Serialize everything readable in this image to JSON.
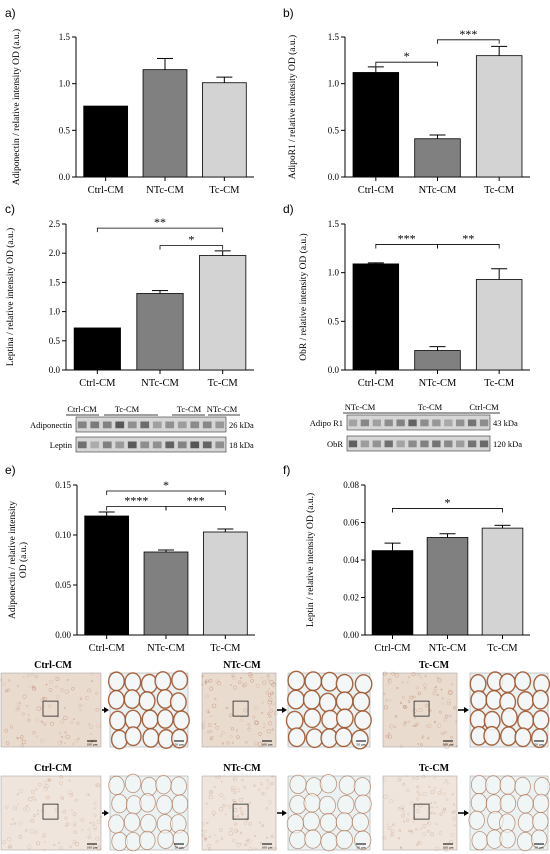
{
  "colors": {
    "Ctrl-CM": "#000000",
    "NTc-CM": "#808080",
    "Tc-CM": "#d3d3d3",
    "stain_brown": "#a0562e",
    "stain_pale": "#ecd8c8",
    "lumen": "#eaf1f2"
  },
  "chart_data": [
    {
      "id": "a",
      "letter": "a)",
      "type": "bar",
      "categories": [
        "Ctrl-CM",
        "NTc-CM",
        "Tc-CM"
      ],
      "values": [
        0.76,
        1.15,
        1.01
      ],
      "errors": [
        0.0,
        0.12,
        0.06
      ],
      "ylabel": "Adiponectin / relative intensity OD (a.u.)",
      "ylim": [
        0,
        1.5
      ],
      "yticks": [
        0.0,
        0.5,
        1.0,
        1.5
      ],
      "tick_labels": [
        "0.0",
        "0.5",
        "1.0",
        "1.5"
      ],
      "significance": []
    },
    {
      "id": "b",
      "letter": "b)",
      "type": "bar",
      "categories": [
        "Ctrl-CM",
        "NTc-CM",
        "Tc-CM"
      ],
      "values": [
        1.12,
        0.41,
        1.3
      ],
      "errors": [
        0.06,
        0.04,
        0.1
      ],
      "ylabel": "AdipoR1 / relative intensity OD (a.u.)",
      "ylim": [
        0,
        1.5
      ],
      "yticks": [
        0.0,
        0.5,
        1.0,
        1.5
      ],
      "tick_labels": [
        "0.0",
        "0.5",
        "1.0",
        "1.5"
      ],
      "significance": [
        {
          "from": 0,
          "to": 1,
          "label": "*",
          "y": 1.23
        },
        {
          "from": 1,
          "to": 2,
          "label": "***",
          "y": 1.47
        }
      ]
    },
    {
      "id": "c",
      "letter": "c)",
      "type": "bar",
      "categories": [
        "Ctrl-CM",
        "NTc-CM",
        "Tc-CM"
      ],
      "values": [
        0.72,
        1.31,
        1.96
      ],
      "errors": [
        0.0,
        0.05,
        0.08
      ],
      "ylabel": "Leptina / relative intensity OD (a.u.)",
      "ylim": [
        0,
        2.5
      ],
      "yticks": [
        0.0,
        0.5,
        1.0,
        1.5,
        2.0,
        2.5
      ],
      "tick_labels": [
        "0.0",
        "0.5",
        "1.0",
        "1.5",
        "2.0",
        "2.5"
      ],
      "significance": [
        {
          "from": 0,
          "to": 2,
          "label": "**",
          "y": 2.43
        },
        {
          "from": 1,
          "to": 2,
          "label": "*",
          "y": 2.13
        }
      ]
    },
    {
      "id": "d",
      "letter": "d)",
      "type": "bar",
      "categories": [
        "Ctrl-CM",
        "NTc-CM",
        "Tc-CM"
      ],
      "values": [
        1.09,
        0.2,
        0.93
      ],
      "errors": [
        0.01,
        0.04,
        0.11
      ],
      "ylabel": "ObR / relative intensity OD (a.u.)",
      "ylim": [
        0,
        1.5
      ],
      "yticks": [
        0.0,
        0.5,
        1.0,
        1.5
      ],
      "tick_labels": [
        "0.0",
        "0.5",
        "1.0",
        "1.5"
      ],
      "significance": [
        {
          "from": 0,
          "to": 1,
          "label": "***",
          "y": 1.29
        },
        {
          "from": 1,
          "to": 2,
          "label": "**",
          "y": 1.29
        }
      ]
    },
    {
      "id": "e",
      "letter": "e)",
      "type": "bar",
      "categories": [
        "Ctrl-CM",
        "NTc-CM",
        "Tc-CM"
      ],
      "values": [
        0.119,
        0.083,
        0.103
      ],
      "errors": [
        0.004,
        0.002,
        0.003
      ],
      "ylabel": "Adiponectin / relative intensity OD (a.u.)",
      "ylabel_lines": [
        "Adiponectin / relative intensity",
        "OD (a.u.)"
      ],
      "ylim": [
        0,
        0.15
      ],
      "yticks": [
        0.0,
        0.05,
        0.1,
        0.15
      ],
      "tick_labels": [
        "0.00",
        "0.05",
        "0.10",
        "0.15"
      ],
      "significance": [
        {
          "from": 0,
          "to": 2,
          "label": "*",
          "y": 0.144
        },
        {
          "from": 0,
          "to": 1,
          "label": "****",
          "y": 0.1285
        },
        {
          "from": 1,
          "to": 2,
          "label": "***",
          "y": 0.1285
        }
      ]
    },
    {
      "id": "f",
      "letter": "f)",
      "type": "bar",
      "categories": [
        "Ctrl-CM",
        "NTc-CM",
        "Tc-CM"
      ],
      "values": [
        0.045,
        0.052,
        0.057
      ],
      "errors": [
        0.004,
        0.002,
        0.0015
      ],
      "ylabel": "Leptin / relative intensity OD (a.u.)",
      "ylim": [
        0,
        0.08
      ],
      "yticks": [
        0.0,
        0.02,
        0.04,
        0.06,
        0.08
      ],
      "tick_labels": [
        "0.00",
        "0.02",
        "0.04",
        "0.06",
        "0.08"
      ],
      "significance": [
        {
          "from": 0,
          "to": 2,
          "label": "*",
          "y": 0.0675
        }
      ]
    }
  ],
  "blots": {
    "left": {
      "lane_groups": [
        "Ctrl-CM",
        "Tc-CM",
        "Tc-CM",
        "NTc-CM"
      ],
      "rows": [
        {
          "protein": "Adiponectin",
          "size": "26 kDa"
        },
        {
          "protein": "Leptin",
          "size": "18 kDa"
        }
      ]
    },
    "right": {
      "lane_groups": [
        "NTc-CM",
        "Tc-CM",
        "Ctrl-CM"
      ],
      "rows": [
        {
          "protein": "Adipo R1",
          "size": "43 kDa"
        },
        {
          "protein": "ObR",
          "size": "120 kDa"
        }
      ]
    }
  },
  "histology": {
    "row1": [
      "Ctrl-CM",
      "NTc-CM",
      "Tc-CM"
    ],
    "row2": [
      "Ctrl-CM",
      "NTc-CM",
      "Tc-CM"
    ],
    "scale_low": "100 µm",
    "scale_high": "50 µm"
  }
}
